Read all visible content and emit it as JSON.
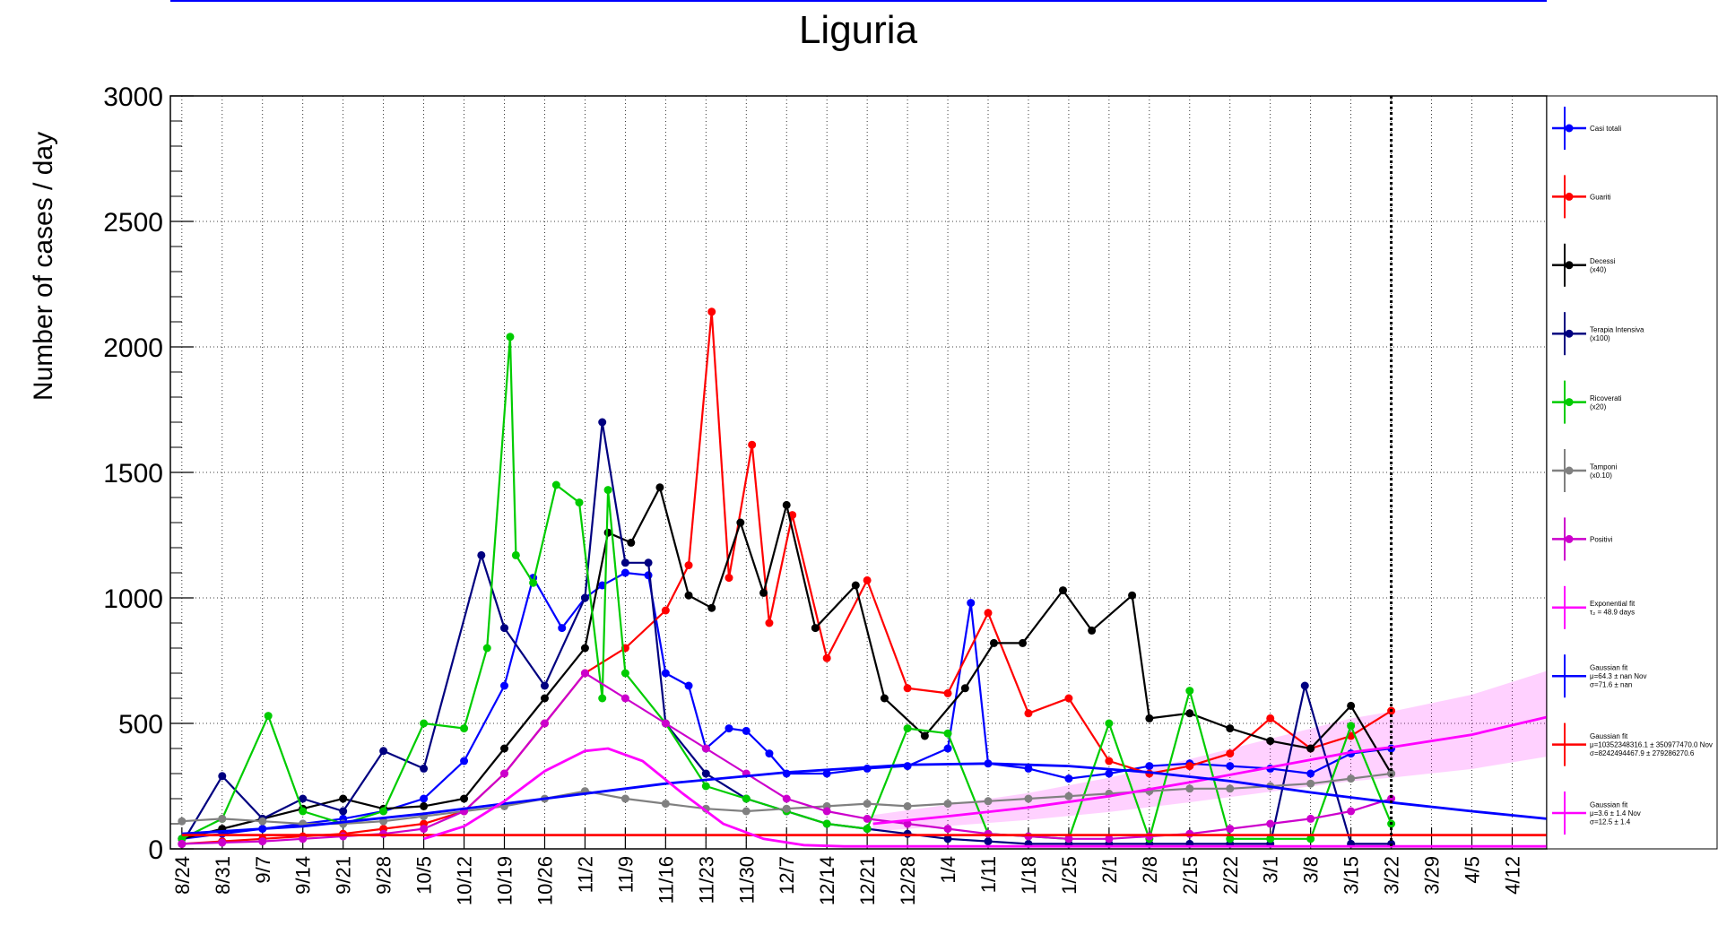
{
  "chart_data": {
    "type": "line",
    "title": "Liguria",
    "xlabel": "",
    "ylabel": "Number of cases / day",
    "ylim": [
      0,
      3000
    ],
    "yticks": [
      0,
      500,
      1000,
      1500,
      2000,
      2500,
      3000
    ],
    "xlim": [
      "2020-08-22",
      "2021-04-18"
    ],
    "x_ticks": [
      "8/24",
      "8/31",
      "9/7",
      "9/14",
      "9/21",
      "9/28",
      "10/5",
      "10/12",
      "10/19",
      "10/26",
      "11/2",
      "11/9",
      "11/16",
      "11/23",
      "11/30",
      "12/7",
      "12/14",
      "12/21",
      "12/28",
      "1/4",
      "1/11",
      "1/18",
      "1/25",
      "2/1",
      "2/8",
      "2/15",
      "2/22",
      "3/1",
      "3/8",
      "3/15",
      "3/22",
      "3/29",
      "4/5",
      "4/12"
    ],
    "grid": true,
    "current_date_marker": "3/22",
    "legend_position": "right",
    "series": [
      {
        "name": "Casi totali",
        "color": "#0000ff",
        "points": [
          [
            "8/24",
            40
          ],
          [
            "8/31",
            60
          ],
          [
            "9/7",
            80
          ],
          [
            "9/14",
            100
          ],
          [
            "9/21",
            120
          ],
          [
            "9/28",
            150
          ],
          [
            "10/5",
            200
          ],
          [
            "10/12",
            350
          ],
          [
            "10/19",
            650
          ],
          [
            "10/24",
            1080
          ],
          [
            "10/29",
            880
          ],
          [
            "11/2",
            1000
          ],
          [
            "11/5",
            1050
          ],
          [
            "11/9",
            1100
          ],
          [
            "11/13",
            1090
          ],
          [
            "11/16",
            700
          ],
          [
            "11/20",
            650
          ],
          [
            "11/23",
            400
          ],
          [
            "11/27",
            480
          ],
          [
            "11/30",
            470
          ],
          [
            "12/4",
            380
          ],
          [
            "12/7",
            300
          ],
          [
            "12/14",
            300
          ],
          [
            "12/21",
            320
          ],
          [
            "12/28",
            330
          ],
          [
            "1/4",
            400
          ],
          [
            "1/8",
            980
          ],
          [
            "1/11",
            340
          ],
          [
            "1/18",
            320
          ],
          [
            "1/25",
            280
          ],
          [
            "2/1",
            300
          ],
          [
            "2/8",
            330
          ],
          [
            "2/15",
            340
          ],
          [
            "2/22",
            330
          ],
          [
            "3/1",
            320
          ],
          [
            "3/8",
            300
          ],
          [
            "3/15",
            380
          ],
          [
            "3/22",
            400
          ]
        ]
      },
      {
        "name": "Guariti",
        "color": "#ff0000",
        "points": [
          [
            "8/24",
            20
          ],
          [
            "8/31",
            30
          ],
          [
            "9/7",
            40
          ],
          [
            "9/14",
            50
          ],
          [
            "9/21",
            60
          ],
          [
            "9/28",
            80
          ],
          [
            "10/5",
            100
          ],
          [
            "10/12",
            150
          ],
          [
            "10/19",
            300
          ],
          [
            "10/26",
            500
          ],
          [
            "11/2",
            700
          ],
          [
            "11/9",
            800
          ],
          [
            "11/16",
            950
          ],
          [
            "11/20",
            1130
          ],
          [
            "11/24",
            2140
          ],
          [
            "11/27",
            1080
          ],
          [
            "12/1",
            1610
          ],
          [
            "12/4",
            900
          ],
          [
            "12/8",
            1330
          ],
          [
            "12/14",
            760
          ],
          [
            "12/21",
            1070
          ],
          [
            "12/28",
            640
          ],
          [
            "1/4",
            620
          ],
          [
            "1/11",
            940
          ],
          [
            "1/18",
            540
          ],
          [
            "1/25",
            600
          ],
          [
            "2/1",
            350
          ],
          [
            "2/8",
            300
          ],
          [
            "2/15",
            330
          ],
          [
            "2/22",
            380
          ],
          [
            "3/1",
            520
          ],
          [
            "3/8",
            400
          ],
          [
            "3/15",
            450
          ],
          [
            "3/22",
            550
          ]
        ]
      },
      {
        "name": "Decessi",
        "note": "(x40)",
        "color": "#000000",
        "points": [
          [
            "8/24",
            40
          ],
          [
            "8/31",
            80
          ],
          [
            "9/7",
            120
          ],
          [
            "9/14",
            160
          ],
          [
            "9/21",
            200
          ],
          [
            "9/28",
            160
          ],
          [
            "10/5",
            170
          ],
          [
            "10/12",
            200
          ],
          [
            "10/19",
            400
          ],
          [
            "10/26",
            600
          ],
          [
            "11/2",
            800
          ],
          [
            "11/6",
            1260
          ],
          [
            "11/10",
            1220
          ],
          [
            "11/15",
            1440
          ],
          [
            "11/20",
            1010
          ],
          [
            "11/24",
            960
          ],
          [
            "11/29",
            1300
          ],
          [
            "12/3",
            1020
          ],
          [
            "12/7",
            1370
          ],
          [
            "12/12",
            880
          ],
          [
            "12/19",
            1050
          ],
          [
            "12/24",
            600
          ],
          [
            "12/31",
            450
          ],
          [
            "1/7",
            640
          ],
          [
            "1/12",
            820
          ],
          [
            "1/17",
            820
          ],
          [
            "1/24",
            1030
          ],
          [
            "1/29",
            870
          ],
          [
            "2/5",
            1010
          ],
          [
            "2/8",
            520
          ],
          [
            "2/15",
            540
          ],
          [
            "2/22",
            480
          ],
          [
            "3/1",
            430
          ],
          [
            "3/8",
            400
          ],
          [
            "3/15",
            570
          ],
          [
            "3/22",
            300
          ]
        ]
      },
      {
        "name": "Terapia Intensiva",
        "note": "(x100)",
        "color": "#000080",
        "points": [
          [
            "8/24",
            20
          ],
          [
            "8/31",
            290
          ],
          [
            "9/7",
            120
          ],
          [
            "9/14",
            200
          ],
          [
            "9/21",
            150
          ],
          [
            "9/28",
            390
          ],
          [
            "10/5",
            320
          ],
          [
            "10/15",
            1170
          ],
          [
            "10/19",
            880
          ],
          [
            "10/26",
            650
          ],
          [
            "11/2",
            1000
          ],
          [
            "11/5",
            1700
          ],
          [
            "11/9",
            1140
          ],
          [
            "11/13",
            1140
          ],
          [
            "11/16",
            500
          ],
          [
            "11/23",
            300
          ],
          [
            "11/30",
            200
          ],
          [
            "12/7",
            150
          ],
          [
            "12/14",
            100
          ],
          [
            "12/21",
            80
          ],
          [
            "12/28",
            60
          ],
          [
            "1/4",
            40
          ],
          [
            "1/11",
            30
          ],
          [
            "1/18",
            20
          ],
          [
            "1/25",
            20
          ],
          [
            "2/1",
            20
          ],
          [
            "2/8",
            20
          ],
          [
            "2/15",
            20
          ],
          [
            "2/22",
            20
          ],
          [
            "3/1",
            20
          ],
          [
            "3/7",
            650
          ],
          [
            "3/15",
            20
          ],
          [
            "3/22",
            20
          ]
        ]
      },
      {
        "name": "Ricoverati",
        "note": "(x20)",
        "color": "#00cc00",
        "points": [
          [
            "8/24",
            40
          ],
          [
            "8/31",
            120
          ],
          [
            "9/8",
            530
          ],
          [
            "9/14",
            150
          ],
          [
            "9/21",
            100
          ],
          [
            "9/28",
            150
          ],
          [
            "10/5",
            500
          ],
          [
            "10/12",
            480
          ],
          [
            "10/16",
            800
          ],
          [
            "10/20",
            2040
          ],
          [
            "10/21",
            1170
          ],
          [
            "10/24",
            1060
          ],
          [
            "10/28",
            1450
          ],
          [
            "11/1",
            1380
          ],
          [
            "11/5",
            600
          ],
          [
            "11/6",
            1430
          ],
          [
            "11/9",
            700
          ],
          [
            "11/16",
            500
          ],
          [
            "11/23",
            250
          ],
          [
            "11/30",
            200
          ],
          [
            "12/7",
            150
          ],
          [
            "12/14",
            100
          ],
          [
            "12/21",
            80
          ],
          [
            "12/28",
            480
          ],
          [
            "1/4",
            460
          ],
          [
            "1/11",
            60
          ],
          [
            "1/18",
            50
          ],
          [
            "1/25",
            40
          ],
          [
            "2/1",
            500
          ],
          [
            "2/8",
            40
          ],
          [
            "2/15",
            630
          ],
          [
            "2/22",
            40
          ],
          [
            "3/1",
            40
          ],
          [
            "3/8",
            40
          ],
          [
            "3/15",
            490
          ],
          [
            "3/22",
            100
          ]
        ]
      },
      {
        "name": "Tamponi",
        "note": "(x0.10)",
        "color": "#808080",
        "points": [
          [
            "8/24",
            110
          ],
          [
            "8/31",
            120
          ],
          [
            "9/7",
            110
          ],
          [
            "9/14",
            100
          ],
          [
            "9/21",
            100
          ],
          [
            "9/28",
            110
          ],
          [
            "10/5",
            130
          ],
          [
            "10/12",
            150
          ],
          [
            "10/19",
            170
          ],
          [
            "10/26",
            200
          ],
          [
            "11/2",
            230
          ],
          [
            "11/9",
            200
          ],
          [
            "11/16",
            180
          ],
          [
            "11/23",
            160
          ],
          [
            "11/30",
            150
          ],
          [
            "12/7",
            160
          ],
          [
            "12/14",
            170
          ],
          [
            "12/21",
            180
          ],
          [
            "12/28",
            170
          ],
          [
            "1/4",
            180
          ],
          [
            "1/11",
            190
          ],
          [
            "1/18",
            200
          ],
          [
            "1/25",
            210
          ],
          [
            "2/1",
            220
          ],
          [
            "2/8",
            230
          ],
          [
            "2/15",
            240
          ],
          [
            "2/22",
            240
          ],
          [
            "3/1",
            250
          ],
          [
            "3/8",
            260
          ],
          [
            "3/15",
            280
          ],
          [
            "3/22",
            300
          ]
        ]
      },
      {
        "name": "Positivi",
        "color": "#cc00cc",
        "points": [
          [
            "8/24",
            20
          ],
          [
            "8/31",
            25
          ],
          [
            "9/7",
            30
          ],
          [
            "9/14",
            40
          ],
          [
            "9/21",
            50
          ],
          [
            "9/28",
            60
          ],
          [
            "10/5",
            80
          ],
          [
            "10/12",
            150
          ],
          [
            "10/19",
            300
          ],
          [
            "10/26",
            500
          ],
          [
            "11/2",
            700
          ],
          [
            "11/9",
            600
          ],
          [
            "11/16",
            500
          ],
          [
            "11/23",
            400
          ],
          [
            "11/30",
            300
          ],
          [
            "12/7",
            200
          ],
          [
            "12/14",
            150
          ],
          [
            "12/21",
            120
          ],
          [
            "12/28",
            100
          ],
          [
            "1/4",
            80
          ],
          [
            "1/11",
            60
          ],
          [
            "1/18",
            50
          ],
          [
            "1/25",
            40
          ],
          [
            "2/1",
            40
          ],
          [
            "2/8",
            50
          ],
          [
            "2/15",
            60
          ],
          [
            "2/22",
            80
          ],
          [
            "3/1",
            100
          ],
          [
            "3/8",
            120
          ],
          [
            "3/15",
            150
          ],
          [
            "3/22",
            200
          ]
        ]
      }
    ],
    "fits": [
      {
        "name": "Exponential fit",
        "params": "τ₂ = 48.9 days",
        "color": "#ff00ff",
        "curve": [
          [
            "12/22",
            100
          ],
          [
            "1/4",
            130
          ],
          [
            "1/18",
            165
          ],
          [
            "2/1",
            210
          ],
          [
            "2/15",
            265
          ],
          [
            "3/1",
            325
          ],
          [
            "3/15",
            385
          ],
          [
            "3/22",
            405
          ],
          [
            "4/5",
            455
          ],
          [
            "4/18",
            525
          ]
        ],
        "band": true
      },
      {
        "name": "Gaussian fit",
        "params": [
          "μ=64.3 ± nan Nov",
          "σ=71.6 ± nan"
        ],
        "color": "#0000ff",
        "curve": [
          [
            "8/24",
            60
          ],
          [
            "9/14",
            90
          ],
          [
            "10/5",
            140
          ],
          [
            "10/26",
            200
          ],
          [
            "11/16",
            260
          ],
          [
            "12/7",
            305
          ],
          [
            "12/28",
            335
          ],
          [
            "1/11",
            340
          ],
          [
            "1/25",
            330
          ],
          [
            "2/8",
            305
          ],
          [
            "2/22",
            270
          ],
          [
            "3/8",
            225
          ],
          [
            "3/22",
            185
          ],
          [
            "4/5",
            150
          ],
          [
            "4/18",
            120
          ]
        ]
      },
      {
        "name": "Gaussian fit",
        "params": [
          "μ=10352348316.1 ± 350977470.0 Nov",
          "σ=8242494467.9 ± 279286270.6"
        ],
        "color": "#ff0000",
        "curve": [
          [
            "8/24",
            55
          ],
          [
            "4/18",
            55
          ]
        ]
      },
      {
        "name": "Gaussian fit",
        "params": [
          "μ=3.6 ± 1.4 Nov",
          "σ=12.5 ± 1.4"
        ],
        "color": "#ff00ff",
        "curve": [
          [
            "10/5",
            40
          ],
          [
            "10/12",
            90
          ],
          [
            "10/19",
            190
          ],
          [
            "10/26",
            310
          ],
          [
            "11/2",
            390
          ],
          [
            "11/6",
            400
          ],
          [
            "11/12",
            350
          ],
          [
            "11/19",
            220
          ],
          [
            "11/26",
            100
          ],
          [
            "12/3",
            40
          ],
          [
            "12/10",
            15
          ],
          [
            "12/17",
            10
          ],
          [
            "4/18",
            10
          ]
        ]
      }
    ]
  }
}
